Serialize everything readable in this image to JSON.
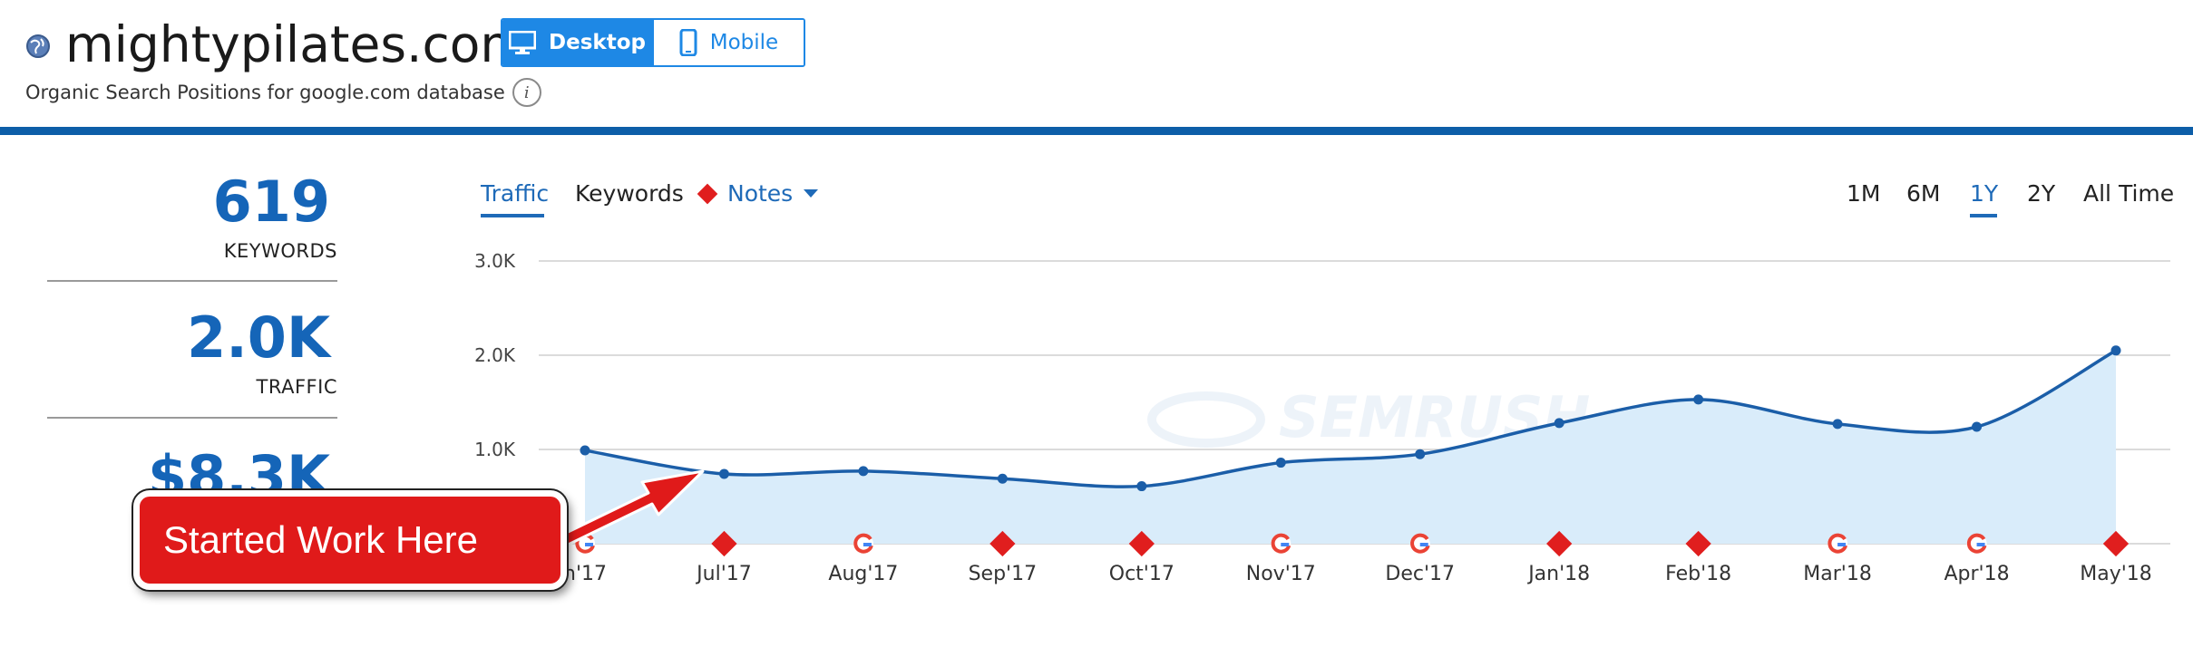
{
  "header": {
    "site_title": "mightypilates.com",
    "subtitle": "Organic Search Positions for google.com database",
    "device_toggle": {
      "desktop_label": "Desktop",
      "mobile_label": "Mobile",
      "selected": "Desktop"
    }
  },
  "metrics": [
    {
      "value": "619",
      "label": "KEYWORDS"
    },
    {
      "value": "2.0K",
      "label": "TRAFFIC"
    },
    {
      "value": "$8.3K",
      "label": ""
    }
  ],
  "tabs": {
    "traffic_label": "Traffic",
    "keywords_label": "Keywords",
    "notes_label": "Notes",
    "selected": "Traffic"
  },
  "ranges": {
    "items": [
      "1M",
      "6M",
      "1Y",
      "2Y",
      "All Time"
    ],
    "selected": "1Y"
  },
  "watermark": "SEMRUSH",
  "callout": {
    "text": "Started Work Here"
  },
  "colors": {
    "accent": "#1e6ab8",
    "line": "#1b5ea8",
    "area": "#d9ecfa",
    "note_marker": "#e01e1e",
    "brand_bar": "#0d5ea8"
  },
  "chart_data": {
    "type": "area",
    "title": "",
    "xlabel": "",
    "ylabel": "",
    "ylim": [
      0,
      3000
    ],
    "yticks": [
      1000,
      2000,
      3000
    ],
    "ytick_labels": [
      "1.0K",
      "2.0K",
      "3.0K"
    ],
    "grid": true,
    "categories": [
      "Jun'17",
      "Jul'17",
      "Aug'17",
      "Sep'17",
      "Oct'17",
      "Nov'17",
      "Dec'17",
      "Jan'18",
      "Feb'18",
      "Mar'18",
      "Apr'18",
      "May'18"
    ],
    "visible_tick_labels": [
      "n'17",
      "Jul'17",
      "Aug'17",
      "Sep'17",
      "Oct'17",
      "Nov'17",
      "Dec'17",
      "Jan'18",
      "Feb'18",
      "Mar'18",
      "Apr'18",
      "May'18"
    ],
    "series": [
      {
        "values": [
          990,
          740,
          770,
          690,
          610,
          860,
          950,
          1280,
          1530,
          1270,
          1240,
          2050
        ]
      }
    ],
    "markers": [
      "google",
      "note",
      "google",
      "note",
      "note",
      "google",
      "google",
      "note",
      "note",
      "google",
      "google",
      "note"
    ]
  }
}
